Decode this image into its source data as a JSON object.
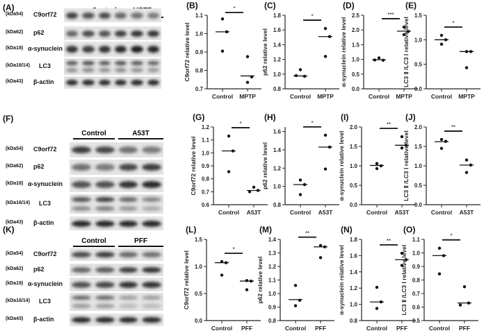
{
  "blots": [
    {
      "panel": "(A)",
      "groups": [
        "Control",
        "MPTP"
      ],
      "rows": [
        {
          "kda": "(kDa54)",
          "label": "C9orf72"
        },
        {
          "kda": "(kDa62)",
          "label": "p62"
        },
        {
          "kda": "(kDa18)",
          "label": "α-synuclein"
        },
        {
          "kda": "(kDa16/14)",
          "label": "LC3"
        },
        {
          "kda": "(kDa43)",
          "label": "β-actin"
        }
      ]
    },
    {
      "panel": "(F)",
      "groups": [
        "Control",
        "A53T"
      ],
      "rows": [
        {
          "kda": "(kDa54)",
          "label": "C9orf72"
        },
        {
          "kda": "(kDa62)",
          "label": "p62"
        },
        {
          "kda": "(kDa18)",
          "label": "α-synuclein"
        },
        {
          "kda": "(kDa16/14)",
          "label": "LC3"
        },
        {
          "kda": "(kDa43)",
          "label": "β-actin"
        }
      ]
    },
    {
      "panel": "(K)",
      "groups": [
        "Control",
        "PFF"
      ],
      "rows": [
        {
          "kda": "(kDa54)",
          "label": "C9orf72"
        },
        {
          "kda": "(kDa62)",
          "label": "p62"
        },
        {
          "kda": "(kDa18)",
          "label": "α-synuclein"
        },
        {
          "kda": "(kDa16/14)",
          "label": "LC3"
        },
        {
          "kda": "(kDa43)",
          "label": "β-actin"
        }
      ]
    }
  ],
  "chart_data": [
    {
      "panel": "(B)",
      "type": "scatter",
      "ylabel": "C9orf72 relative level",
      "categories": [
        "Control",
        "MPTP"
      ],
      "ylim": [
        0.7,
        1.1
      ],
      "yticks": [
        "0.7",
        "0.8",
        "0.9",
        "1.0",
        "1.1"
      ],
      "points": [
        [
          1.08,
          1.01,
          0.905
        ],
        [
          0.875,
          0.765,
          0.735
        ]
      ],
      "medians": [
        1.01,
        0.77
      ],
      "significance": "*"
    },
    {
      "panel": "(C)",
      "type": "scatter",
      "ylabel": "p62 relative level",
      "categories": [
        "Control",
        "MPTP"
      ],
      "ylim": [
        0.8,
        1.8
      ],
      "yticks": [
        "0.8",
        "1.0",
        "1.2",
        "1.4",
        "1.6",
        "1.8"
      ],
      "points": [
        [
          1.06,
          0.97,
          0.98
        ],
        [
          1.62,
          1.51,
          1.24
        ]
      ],
      "medians": [
        0.975,
        1.51
      ],
      "significance": "*"
    },
    {
      "panel": "(D)",
      "type": "scatter",
      "ylabel": "α-synuclein relative level",
      "categories": [
        "Control",
        "MPTP"
      ],
      "ylim": [
        0,
        2.5
      ],
      "yticks": [
        "0.0",
        "0.5",
        "1.0",
        "1.5",
        "2.0",
        "2.5"
      ],
      "points": [
        [
          1.05,
          0.97,
          0.98
        ],
        [
          2.1,
          1.95,
          1.84
        ]
      ],
      "medians": [
        0.99,
        1.96
      ],
      "significance": "***"
    },
    {
      "panel": "(E)",
      "type": "scatter",
      "ylabel": "LC3 Ⅱ /LC3 Ⅰ relative level",
      "categories": [
        "Control",
        "MPTP"
      ],
      "ylim": [
        0,
        1.5
      ],
      "yticks": [
        "0.0",
        "0.5",
        "1.0",
        "1.5"
      ],
      "points": [
        [
          1.09,
          1.0,
          0.91
        ],
        [
          0.76,
          0.76,
          0.43
        ]
      ],
      "medians": [
        1.0,
        0.76
      ],
      "significance": "*"
    },
    {
      "panel": "(G)",
      "type": "scatter",
      "ylabel": "C9orf72 relative level",
      "categories": [
        "Control",
        "A53T"
      ],
      "ylim": [
        0.6,
        1.2
      ],
      "yticks": [
        "0.6",
        "0.7",
        "0.8",
        "0.9",
        "1.0",
        "1.1",
        "1.2"
      ],
      "points": [
        [
          1.13,
          1.015,
          0.855
        ],
        [
          0.735,
          0.71,
          0.7
        ]
      ],
      "medians": [
        1.015,
        0.71
      ],
      "significance": "*"
    },
    {
      "panel": "(H)",
      "type": "scatter",
      "ylabel": "p62 relative level",
      "categories": [
        "Control",
        "A53T"
      ],
      "ylim": [
        0.8,
        1.65
      ],
      "yticks": [
        "0.8",
        "1.0",
        "1.2",
        "1.4",
        "1.6"
      ],
      "points": [
        [
          1.07,
          1.02,
          0.91
        ],
        [
          1.56,
          1.43,
          1.19
        ]
      ],
      "medians": [
        1.02,
        1.43
      ],
      "significance": "*"
    },
    {
      "panel": "(I)",
      "type": "scatter",
      "ylabel": "α-synuclein relative level",
      "categories": [
        "Control",
        "A53T"
      ],
      "ylim": [
        0,
        2.0
      ],
      "yticks": [
        "0.0",
        "0.5",
        "1.0",
        "1.5",
        "2.0"
      ],
      "points": [
        [
          1.06,
          1.0,
          0.93
        ],
        [
          1.75,
          1.53,
          1.46
        ]
      ],
      "medians": [
        1.01,
        1.53
      ],
      "significance": "**"
    },
    {
      "panel": "(J)",
      "type": "scatter",
      "ylabel": "LC3 Ⅱ /LC3 Ⅰ relative level",
      "categories": [
        "Control",
        "A53T"
      ],
      "ylim": [
        0,
        2.0
      ],
      "yticks": [
        "0.0",
        "0.5",
        "1.0",
        "1.5",
        "2.0"
      ],
      "points": [
        [
          1.68,
          1.63,
          1.45
        ],
        [
          1.15,
          1.02,
          0.83
        ]
      ],
      "medians": [
        1.62,
        1.02
      ],
      "significance": "**"
    },
    {
      "panel": "(L)",
      "type": "scatter",
      "ylabel": "C9orf72 relative level",
      "categories": [
        "Control",
        "PFF"
      ],
      "ylim": [
        0,
        1.5
      ],
      "yticks": [
        "0.0",
        "0.5",
        "1.0",
        "1.5"
      ],
      "points": [
        [
          1.09,
          1.07,
          0.84
        ],
        [
          0.74,
          0.73,
          0.57
        ]
      ],
      "medians": [
        1.07,
        0.73
      ],
      "significance": "*"
    },
    {
      "panel": "(M)",
      "type": "scatter",
      "ylabel": "p62 relative level",
      "categories": [
        "Control",
        "PFF"
      ],
      "ylim": [
        0.8,
        1.4
      ],
      "yticks": [
        "0.8",
        "0.9",
        "1.0",
        "1.1",
        "1.2",
        "1.3",
        "1.4"
      ],
      "points": [
        [
          1.06,
          0.95,
          0.91
        ],
        [
          1.355,
          1.345,
          1.265
        ]
      ],
      "medians": [
        0.955,
        1.345
      ],
      "significance": "**"
    },
    {
      "panel": "(N)",
      "type": "scatter",
      "ylabel": "α-synuclein relative level",
      "categories": [
        "Control",
        "PFF"
      ],
      "ylim": [
        0.8,
        1.8
      ],
      "yticks": [
        "0.8",
        "1.0",
        "1.2",
        "1.4",
        "1.6",
        "1.8"
      ],
      "points": [
        [
          1.21,
          1.03,
          0.95
        ],
        [
          1.63,
          1.55,
          1.48
        ]
      ],
      "medians": [
        1.03,
        1.55
      ],
      "significance": "**"
    },
    {
      "panel": "(O)",
      "type": "scatter",
      "ylabel": "LC3 Ⅱ /LC3 Ⅰ relative level",
      "categories": [
        "Control",
        "PFF"
      ],
      "ylim": [
        0.5,
        1.1
      ],
      "yticks": [
        "0.5",
        "0.6",
        "0.7",
        "0.8",
        "0.9",
        "1.0",
        "1.1"
      ],
      "points": [
        [
          1.035,
          0.98,
          0.845
        ],
        [
          0.75,
          0.63,
          0.615
        ]
      ],
      "medians": [
        0.98,
        0.63
      ],
      "significance": "*"
    }
  ]
}
